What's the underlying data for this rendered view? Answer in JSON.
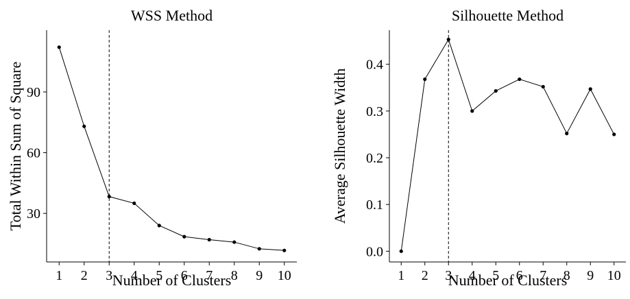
{
  "chart_data": [
    {
      "type": "line",
      "title": "WSS Method",
      "xlabel": "Number of Clusters",
      "ylabel": "Total Within Sum of Square",
      "x": [
        1,
        2,
        3,
        4,
        5,
        6,
        7,
        8,
        9,
        10
      ],
      "xticks": [
        "1",
        "2",
        "3",
        "4",
        "5",
        "6",
        "7",
        "8",
        "9",
        "10"
      ],
      "xlim": [
        0.5,
        10.5
      ],
      "y": [
        112.1,
        73.0,
        38.3,
        35.0,
        24.0,
        18.5,
        17.0,
        15.8,
        12.5,
        11.7
      ],
      "yticks": [
        30,
        60,
        90
      ],
      "ytick_labels": [
        "30",
        "60",
        "90"
      ],
      "ylim": [
        6.0,
        120.5
      ],
      "vline_x": 3,
      "vline_style": "dashed",
      "grid": false,
      "color": "#000000"
    },
    {
      "type": "line",
      "title": "Silhouette Method",
      "xlabel": "Number of Clusters",
      "ylabel": "Average Silhouette Width",
      "x": [
        1,
        2,
        3,
        4,
        5,
        6,
        7,
        8,
        9,
        10
      ],
      "xticks": [
        "1",
        "2",
        "3",
        "4",
        "5",
        "6",
        "7",
        "8",
        "9",
        "10"
      ],
      "xlim": [
        0.5,
        10.5
      ],
      "y": [
        0.0,
        0.368,
        0.453,
        0.3,
        0.343,
        0.368,
        0.352,
        0.252,
        0.347,
        0.25
      ],
      "yticks": [
        0.0,
        0.1,
        0.2,
        0.3,
        0.4
      ],
      "ytick_labels": [
        "0.0",
        "0.1",
        "0.2",
        "0.3",
        "0.4"
      ],
      "ylim": [
        -0.023,
        0.473
      ],
      "vline_x": 3,
      "vline_style": "dashed",
      "grid": false,
      "color": "#000000"
    }
  ]
}
